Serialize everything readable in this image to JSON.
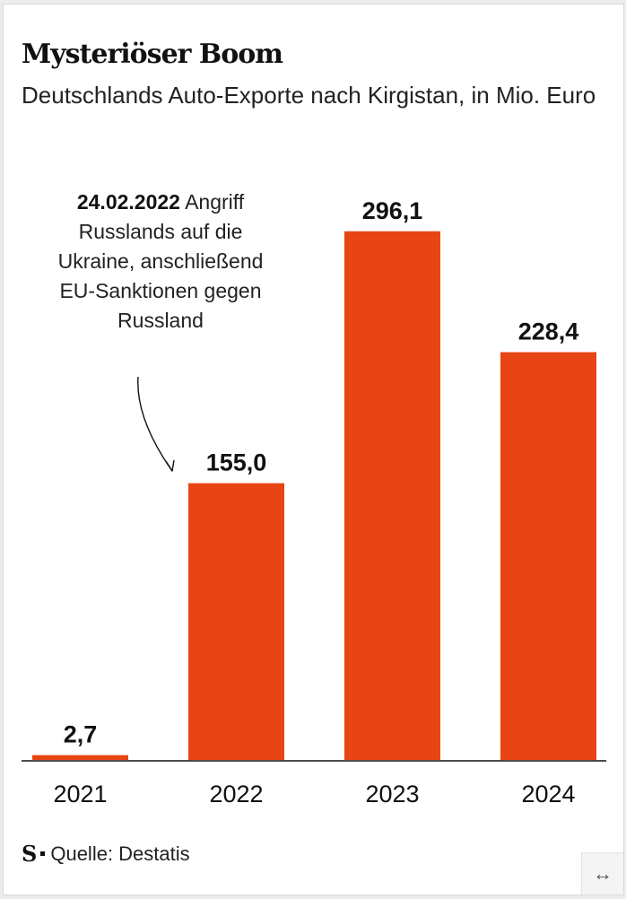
{
  "header": {
    "title": "Mysteriöser Boom",
    "subtitle": "Deutschlands Auto-Exporte nach Kirgistan, in Mio. Euro"
  },
  "annotation": {
    "date": "24.02.2022",
    "text": "Angriff Russlands auf die Ukraine, anschließend EU-Sanktionen gegen Russland"
  },
  "chart_data": {
    "type": "bar",
    "title": "Mysteriöser Boom",
    "subtitle": "Deutschlands Auto-Exporte nach Kirgistan, in Mio. Euro",
    "categories": [
      "2021",
      "2022",
      "2023",
      "2024"
    ],
    "values": [
      2.7,
      155.0,
      296.1,
      228.4
    ],
    "value_labels": [
      "2,7",
      "155,0",
      "296,1",
      "228,4"
    ],
    "bar_color": "#e84515",
    "ylim": [
      0,
      300
    ],
    "grid": false,
    "legend": "none"
  },
  "footer": {
    "logo": "S",
    "source": "Quelle: Destatis"
  },
  "controls": {
    "expand_icon": "↔"
  }
}
